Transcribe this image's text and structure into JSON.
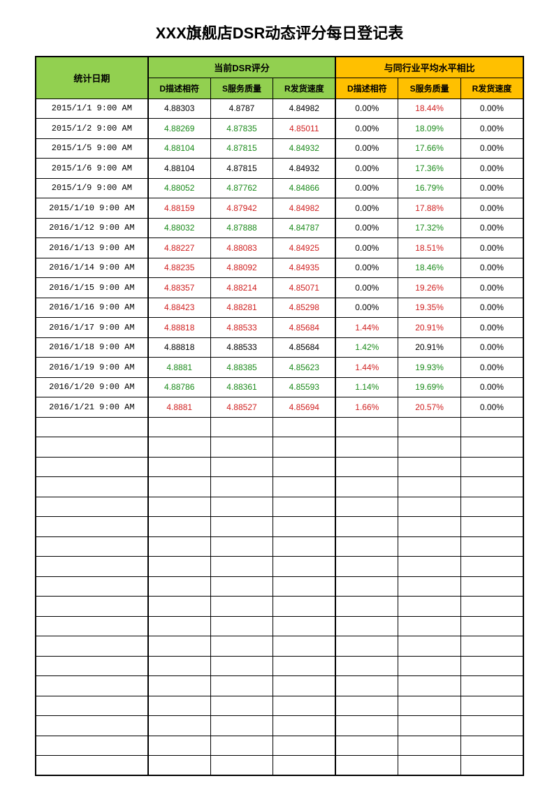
{
  "title": "XXX旗舰店DSR动态评分每日登记表",
  "headers": {
    "date": "统计日期",
    "group1": "当前DSR评分",
    "group2": "与同行业平均水平相比",
    "d": "D描述相符",
    "s": "S服务质量",
    "r": "R发货速度"
  },
  "colors": {
    "green_bg": "#92d050",
    "yellow_bg": "#ffc000",
    "text_black": "#000000",
    "text_green": "#1a8a1a",
    "text_red": "#d02020"
  },
  "empty_rows": 18,
  "rows": [
    {
      "date": "2015/1/1 9:00 AM",
      "d": {
        "v": "4.88303",
        "c": "black"
      },
      "s": {
        "v": "4.8787",
        "c": "black"
      },
      "r": {
        "v": "4.84982",
        "c": "black"
      },
      "dp": {
        "v": "0.00%",
        "c": "black"
      },
      "sp": {
        "v": "18.44%",
        "c": "red"
      },
      "rp": {
        "v": "0.00%",
        "c": "black"
      }
    },
    {
      "date": "2015/1/2 9:00 AM",
      "d": {
        "v": "4.88269",
        "c": "green"
      },
      "s": {
        "v": "4.87835",
        "c": "green"
      },
      "r": {
        "v": "4.85011",
        "c": "red"
      },
      "dp": {
        "v": "0.00%",
        "c": "black"
      },
      "sp": {
        "v": "18.09%",
        "c": "green"
      },
      "rp": {
        "v": "0.00%",
        "c": "black"
      }
    },
    {
      "date": "2015/1/5 9:00 AM",
      "d": {
        "v": "4.88104",
        "c": "green"
      },
      "s": {
        "v": "4.87815",
        "c": "green"
      },
      "r": {
        "v": "4.84932",
        "c": "green"
      },
      "dp": {
        "v": "0.00%",
        "c": "black"
      },
      "sp": {
        "v": "17.66%",
        "c": "green"
      },
      "rp": {
        "v": "0.00%",
        "c": "black"
      }
    },
    {
      "date": "2015/1/6 9:00 AM",
      "d": {
        "v": "4.88104",
        "c": "black"
      },
      "s": {
        "v": "4.87815",
        "c": "black"
      },
      "r": {
        "v": "4.84932",
        "c": "black"
      },
      "dp": {
        "v": "0.00%",
        "c": "black"
      },
      "sp": {
        "v": "17.36%",
        "c": "green"
      },
      "rp": {
        "v": "0.00%",
        "c": "black"
      }
    },
    {
      "date": "2015/1/9 9:00 AM",
      "d": {
        "v": "4.88052",
        "c": "green"
      },
      "s": {
        "v": "4.87762",
        "c": "green"
      },
      "r": {
        "v": "4.84866",
        "c": "green"
      },
      "dp": {
        "v": "0.00%",
        "c": "black"
      },
      "sp": {
        "v": "16.79%",
        "c": "green"
      },
      "rp": {
        "v": "0.00%",
        "c": "black"
      }
    },
    {
      "date": "2015/1/10 9:00 AM",
      "d": {
        "v": "4.88159",
        "c": "red"
      },
      "s": {
        "v": "4.87942",
        "c": "red"
      },
      "r": {
        "v": "4.84982",
        "c": "red"
      },
      "dp": {
        "v": "0.00%",
        "c": "black"
      },
      "sp": {
        "v": "17.88%",
        "c": "red"
      },
      "rp": {
        "v": "0.00%",
        "c": "black"
      }
    },
    {
      "date": "2016/1/12 9:00 AM",
      "d": {
        "v": "4.88032",
        "c": "green"
      },
      "s": {
        "v": "4.87888",
        "c": "green"
      },
      "r": {
        "v": "4.84787",
        "c": "green"
      },
      "dp": {
        "v": "0.00%",
        "c": "black"
      },
      "sp": {
        "v": "17.32%",
        "c": "green"
      },
      "rp": {
        "v": "0.00%",
        "c": "black"
      }
    },
    {
      "date": "2016/1/13 9:00 AM",
      "d": {
        "v": "4.88227",
        "c": "red"
      },
      "s": {
        "v": "4.88083",
        "c": "red"
      },
      "r": {
        "v": "4.84925",
        "c": "red"
      },
      "dp": {
        "v": "0.00%",
        "c": "black"
      },
      "sp": {
        "v": "18.51%",
        "c": "red"
      },
      "rp": {
        "v": "0.00%",
        "c": "black"
      }
    },
    {
      "date": "2016/1/14 9:00 AM",
      "d": {
        "v": "4.88235",
        "c": "red"
      },
      "s": {
        "v": "4.88092",
        "c": "red"
      },
      "r": {
        "v": "4.84935",
        "c": "red"
      },
      "dp": {
        "v": "0.00%",
        "c": "black"
      },
      "sp": {
        "v": "18.46%",
        "c": "green"
      },
      "rp": {
        "v": "0.00%",
        "c": "black"
      }
    },
    {
      "date": "2016/1/15 9:00 AM",
      "d": {
        "v": "4.88357",
        "c": "red"
      },
      "s": {
        "v": "4.88214",
        "c": "red"
      },
      "r": {
        "v": "4.85071",
        "c": "red"
      },
      "dp": {
        "v": "0.00%",
        "c": "black"
      },
      "sp": {
        "v": "19.26%",
        "c": "red"
      },
      "rp": {
        "v": "0.00%",
        "c": "black"
      }
    },
    {
      "date": "2016/1/16 9:00 AM",
      "d": {
        "v": "4.88423",
        "c": "red"
      },
      "s": {
        "v": "4.88281",
        "c": "red"
      },
      "r": {
        "v": "4.85298",
        "c": "red"
      },
      "dp": {
        "v": "0.00%",
        "c": "black"
      },
      "sp": {
        "v": "19.35%",
        "c": "red"
      },
      "rp": {
        "v": "0.00%",
        "c": "black"
      }
    },
    {
      "date": "2016/1/17 9:00 AM",
      "d": {
        "v": "4.88818",
        "c": "red"
      },
      "s": {
        "v": "4.88533",
        "c": "red"
      },
      "r": {
        "v": "4.85684",
        "c": "red"
      },
      "dp": {
        "v": "1.44%",
        "c": "red"
      },
      "sp": {
        "v": "20.91%",
        "c": "red"
      },
      "rp": {
        "v": "0.00%",
        "c": "black"
      }
    },
    {
      "date": "2016/1/18 9:00 AM",
      "d": {
        "v": "4.88818",
        "c": "black"
      },
      "s": {
        "v": "4.88533",
        "c": "black"
      },
      "r": {
        "v": "4.85684",
        "c": "black"
      },
      "dp": {
        "v": "1.42%",
        "c": "green"
      },
      "sp": {
        "v": "20.91%",
        "c": "black"
      },
      "rp": {
        "v": "0.00%",
        "c": "black"
      }
    },
    {
      "date": "2016/1/19 9:00 AM",
      "d": {
        "v": "4.8881",
        "c": "green"
      },
      "s": {
        "v": "4.88385",
        "c": "green"
      },
      "r": {
        "v": "4.85623",
        "c": "green"
      },
      "dp": {
        "v": "1.44%",
        "c": "red"
      },
      "sp": {
        "v": "19.93%",
        "c": "green"
      },
      "rp": {
        "v": "0.00%",
        "c": "black"
      }
    },
    {
      "date": "2016/1/20 9:00 AM",
      "d": {
        "v": "4.88786",
        "c": "green"
      },
      "s": {
        "v": "4.88361",
        "c": "green"
      },
      "r": {
        "v": "4.85593",
        "c": "green"
      },
      "dp": {
        "v": "1.14%",
        "c": "green"
      },
      "sp": {
        "v": "19.69%",
        "c": "green"
      },
      "rp": {
        "v": "0.00%",
        "c": "black"
      }
    },
    {
      "date": "2016/1/21 9:00 AM",
      "d": {
        "v": "4.8881",
        "c": "red"
      },
      "s": {
        "v": "4.88527",
        "c": "red"
      },
      "r": {
        "v": "4.85694",
        "c": "red"
      },
      "dp": {
        "v": "1.66%",
        "c": "red"
      },
      "sp": {
        "v": "20.57%",
        "c": "red"
      },
      "rp": {
        "v": "0.00%",
        "c": "black"
      }
    }
  ]
}
